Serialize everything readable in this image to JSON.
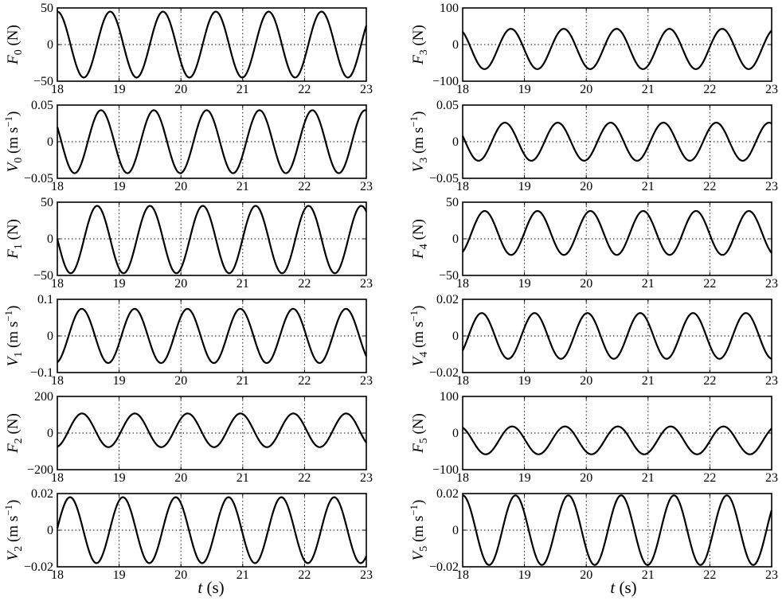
{
  "chart_data": [
    {
      "id": "F0",
      "type": "line",
      "y_symbol": "F",
      "y_sub": "0",
      "y_unit": " (N)",
      "y_unit_sup": "",
      "xlim": [
        18,
        23
      ],
      "ylim": [
        -50,
        50
      ],
      "x_ticks": [
        "18",
        "19",
        "20",
        "21",
        "22",
        "23"
      ],
      "y_ticks": [
        "50",
        "0",
        "−50"
      ],
      "y_tick_values": [
        50,
        0,
        -50
      ],
      "grid": true,
      "wave": {
        "amplitude": 45,
        "offset": 0,
        "period": 0.855,
        "value_at_18": 45,
        "start": "down"
      }
    },
    {
      "id": "V0",
      "type": "line",
      "y_symbol": "V",
      "y_sub": "0",
      "y_unit": " (m s",
      "y_unit_sup": "−1",
      "xlim": [
        18,
        23
      ],
      "ylim": [
        -0.05,
        0.05
      ],
      "x_ticks": [
        "18",
        "19",
        "20",
        "21",
        "22",
        "23"
      ],
      "y_ticks": [
        "0.05",
        "0",
        "−0.05"
      ],
      "y_tick_values": [
        0.05,
        0,
        -0.05
      ],
      "grid": true,
      "wave": {
        "amplitude": 0.043,
        "offset": 0,
        "period": 0.855,
        "value_at_18": 0.02,
        "start": "down"
      }
    },
    {
      "id": "F1",
      "type": "line",
      "y_symbol": "F",
      "y_sub": "1",
      "y_unit": " (N)",
      "y_unit_sup": "",
      "xlim": [
        18,
        23
      ],
      "ylim": [
        -50,
        50
      ],
      "x_ticks": [
        "18",
        "19",
        "20",
        "21",
        "22",
        "23"
      ],
      "y_ticks": [
        "50",
        "0",
        "−50"
      ],
      "y_tick_values": [
        50,
        0,
        -50
      ],
      "grid": true,
      "wave": {
        "amplitude": 46,
        "offset": -1,
        "period": 0.855,
        "value_at_18": 0,
        "start": "down"
      }
    },
    {
      "id": "V1",
      "type": "line",
      "y_symbol": "V",
      "y_sub": "1",
      "y_unit": " (m s",
      "y_unit_sup": "−1",
      "xlim": [
        18,
        23
      ],
      "ylim": [
        -0.1,
        0.1
      ],
      "x_ticks": [
        "18",
        "19",
        "20",
        "21",
        "22",
        "23"
      ],
      "y_ticks": [
        "0.1",
        "0",
        "−0.1"
      ],
      "y_tick_values": [
        0.1,
        0,
        -0.1
      ],
      "grid": true,
      "wave": {
        "amplitude": 0.074,
        "offset": 0,
        "period": 0.855,
        "value_at_18": -0.072,
        "start": "up"
      }
    },
    {
      "id": "F2",
      "type": "line",
      "y_symbol": "F",
      "y_sub": "2",
      "y_unit": " (N)",
      "y_unit_sup": "",
      "xlim": [
        18,
        23
      ],
      "ylim": [
        -200,
        200
      ],
      "x_ticks": [
        "18",
        "19",
        "20",
        "21",
        "22",
        "23"
      ],
      "y_ticks": [
        "200",
        "0",
        "−200"
      ],
      "y_tick_values": [
        200,
        0,
        -200
      ],
      "grid": true,
      "wave": {
        "amplitude": 92,
        "offset": 15,
        "period": 0.855,
        "value_at_18": -75,
        "start": "up"
      }
    },
    {
      "id": "V2",
      "type": "line",
      "y_symbol": "V",
      "y_sub": "2",
      "y_unit": " (m s",
      "y_unit_sup": "−1",
      "xlim": [
        18,
        23
      ],
      "ylim": [
        -0.02,
        0.02
      ],
      "x_ticks": [
        "18",
        "19",
        "20",
        "21",
        "22",
        "23"
      ],
      "y_ticks": [
        "0.02",
        "0",
        "−0.02"
      ],
      "y_tick_values": [
        0.02,
        0,
        -0.02
      ],
      "grid": true,
      "wave": {
        "amplitude": 0.018,
        "offset": 0,
        "period": 0.855,
        "value_at_18": 0.001,
        "start": "up"
      }
    },
    {
      "id": "F3",
      "type": "line",
      "y_symbol": "F",
      "y_sub": "3",
      "y_unit": " (N)",
      "y_unit_sup": "",
      "xlim": [
        18,
        23
      ],
      "ylim": [
        -100,
        100
      ],
      "x_ticks": [
        "18",
        "19",
        "20",
        "21",
        "22",
        "23"
      ],
      "y_ticks": [
        "100",
        "0",
        "−100"
      ],
      "y_tick_values": [
        100,
        0,
        -100
      ],
      "grid": true,
      "wave": {
        "amplitude": 55,
        "offset": -12,
        "period": 0.855,
        "value_at_18": 35,
        "start": "down"
      }
    },
    {
      "id": "V3",
      "type": "line",
      "y_symbol": "V",
      "y_sub": "3",
      "y_unit": " (m s",
      "y_unit_sup": "−1",
      "xlim": [
        18,
        23
      ],
      "ylim": [
        -0.05,
        0.05
      ],
      "x_ticks": [
        "18",
        "19",
        "20",
        "21",
        "22",
        "23"
      ],
      "y_ticks": [
        "0.05",
        "0",
        "−0.05"
      ],
      "y_tick_values": [
        0.05,
        0,
        -0.05
      ],
      "grid": true,
      "wave": {
        "amplitude": 0.026,
        "offset": 0,
        "period": 0.855,
        "value_at_18": 0.008,
        "start": "down"
      }
    },
    {
      "id": "F4",
      "type": "line",
      "y_symbol": "F",
      "y_sub": "4",
      "y_unit": " (N)",
      "y_unit_sup": "",
      "xlim": [
        18,
        23
      ],
      "ylim": [
        -50,
        50
      ],
      "x_ticks": [
        "18",
        "19",
        "20",
        "21",
        "22",
        "23"
      ],
      "y_ticks": [
        "50",
        "0",
        "−50"
      ],
      "y_tick_values": [
        50,
        0,
        -50
      ],
      "grid": true,
      "wave": {
        "amplitude": 30,
        "offset": 8,
        "period": 0.855,
        "value_at_18": -18,
        "start": "up"
      }
    },
    {
      "id": "V4",
      "type": "line",
      "y_symbol": "V",
      "y_sub": "4",
      "y_unit": " (m s",
      "y_unit_sup": "−1",
      "xlim": [
        18,
        23
      ],
      "ylim": [
        -0.02,
        0.02
      ],
      "x_ticks": [
        "18",
        "19",
        "20",
        "21",
        "22",
        "23"
      ],
      "y_ticks": [
        "0.02",
        "0",
        "−0.02"
      ],
      "y_tick_values": [
        0.02,
        0,
        -0.02
      ],
      "grid": true,
      "wave": {
        "amplitude": 0.0125,
        "offset": 0,
        "period": 0.855,
        "value_at_18": -0.008,
        "start": "up"
      }
    },
    {
      "id": "F5",
      "type": "line",
      "y_symbol": "F",
      "y_sub": "5",
      "y_unit": " (N)",
      "y_unit_sup": "",
      "xlim": [
        18,
        23
      ],
      "ylim": [
        -100,
        100
      ],
      "x_ticks": [
        "18",
        "19",
        "20",
        "21",
        "22",
        "23"
      ],
      "y_ticks": [
        "100",
        "0",
        "−100"
      ],
      "y_tick_values": [
        100,
        0,
        -100
      ],
      "grid": true,
      "wave": {
        "amplitude": 38,
        "offset": -20,
        "period": 0.855,
        "value_at_18": 15,
        "start": "down"
      }
    },
    {
      "id": "V5",
      "type": "line",
      "y_symbol": "V",
      "y_sub": "5",
      "y_unit": " (m s",
      "y_unit_sup": "−1",
      "xlim": [
        18,
        23
      ],
      "ylim": [
        -0.02,
        0.02
      ],
      "x_ticks": [
        "18",
        "19",
        "20",
        "21",
        "22",
        "23"
      ],
      "y_ticks": [
        "0.02",
        "0",
        "−0.02"
      ],
      "y_tick_values": [
        0.02,
        0,
        -0.02
      ],
      "grid": true,
      "wave": {
        "amplitude": 0.019,
        "offset": 0,
        "period": 0.855,
        "value_at_18": 0.019,
        "start": "down"
      }
    }
  ],
  "x_axis_label": {
    "symbol": "t",
    "unit": " (s)"
  }
}
